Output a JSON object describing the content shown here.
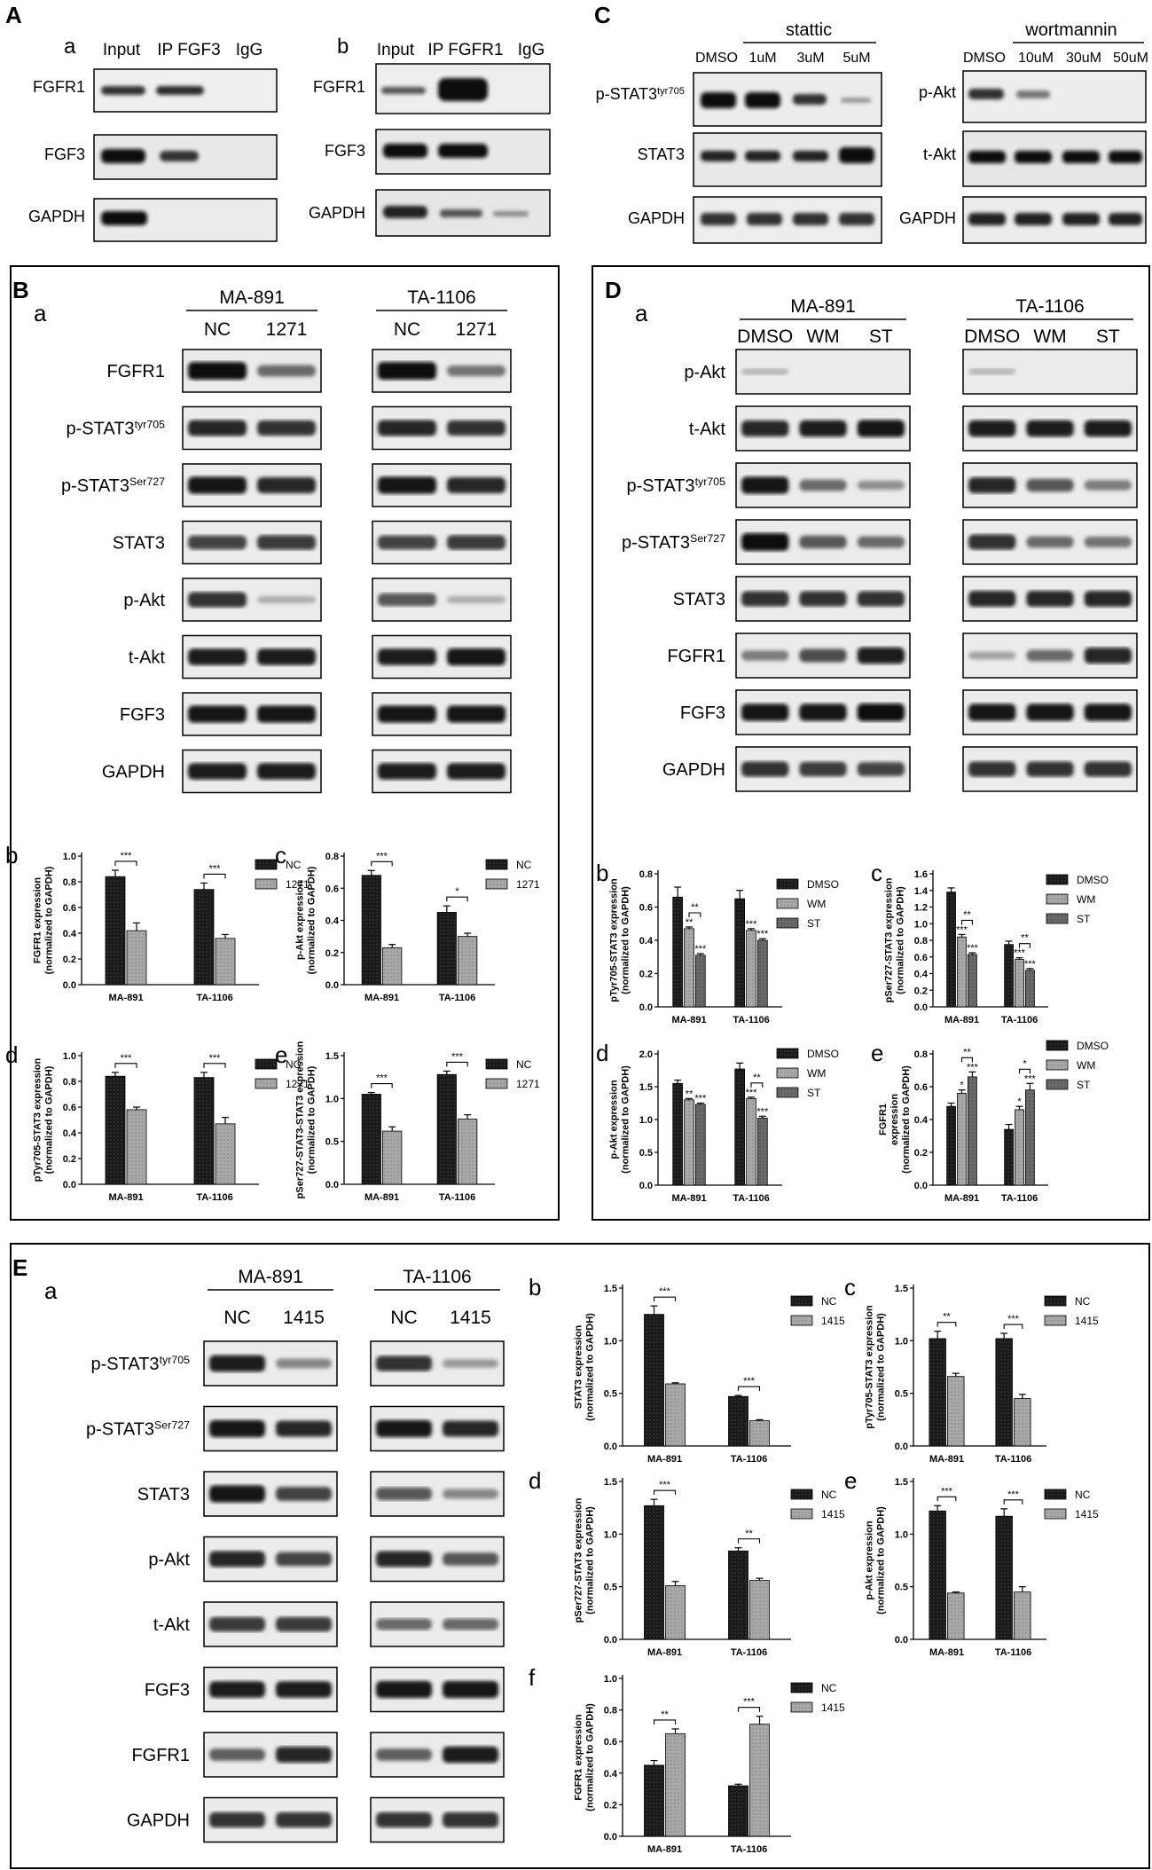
{
  "panels": {
    "A": {
      "letter": "A",
      "a": {
        "sub": "a",
        "cols": [
          "Input",
          "IP FGF3",
          "IgG"
        ],
        "rows": [
          "FGFR1",
          "FGF3",
          "GAPDH"
        ]
      },
      "b": {
        "sub": "b",
        "cols": [
          "Input",
          "IP FGFR1",
          "IgG"
        ],
        "rows": [
          "FGFR1",
          "FGF3",
          "GAPDH"
        ]
      }
    },
    "C": {
      "letter": "C",
      "left": {
        "group": "stattic",
        "cols": [
          "DMSO",
          "1uM",
          "3uM",
          "5uM"
        ],
        "rows": [
          "p-STAT3tyr705",
          "STAT3",
          "GAPDH"
        ]
      },
      "right": {
        "group": "wortmannin",
        "cols": [
          "DMSO",
          "10uM",
          "30uM",
          "50uM"
        ],
        "rows": [
          "p-Akt",
          "t-Akt",
          "GAPDH"
        ]
      }
    },
    "B": {
      "letter": "B",
      "blot": {
        "sub": "a",
        "groups": [
          {
            "name": "MA-891",
            "cols": [
              "NC",
              "1271"
            ]
          },
          {
            "name": "TA-1106",
            "cols": [
              "NC",
              "1271"
            ]
          }
        ],
        "rows": [
          "FGFR1",
          "p-STAT3tyr705",
          "p-STAT3Ser727",
          "STAT3",
          "p-Akt",
          "t-Akt",
          "FGF3",
          "GAPDH"
        ]
      }
    },
    "D": {
      "letter": "D",
      "blot": {
        "sub": "a",
        "groups": [
          {
            "name": "MA-891",
            "cols": [
              "DMSO",
              "WM",
              "ST"
            ]
          },
          {
            "name": "TA-1106",
            "cols": [
              "DMSO",
              "WM",
              "ST"
            ]
          }
        ],
        "rows": [
          "p-Akt",
          "t-Akt",
          "p-STAT3tyr705",
          "p-STAT3Ser727",
          "STAT3",
          "FGFR1",
          "FGF3",
          "GAPDH"
        ]
      }
    },
    "E": {
      "letter": "E",
      "blot": {
        "sub": "a",
        "groups": [
          {
            "name": "MA-891",
            "cols": [
              "NC",
              "1415"
            ]
          },
          {
            "name": "TA-1106",
            "cols": [
              "NC",
              "1415"
            ]
          }
        ],
        "rows": [
          "p-STAT3tyr705",
          "p-STAT3Ser727",
          "STAT3",
          "p-Akt",
          "t-Akt",
          "FGF3",
          "FGFR1",
          "GAPDH"
        ]
      }
    }
  },
  "colors": {
    "series1": "#1a1a1a",
    "series2": "#9a9a9a",
    "series3": "#6a6a6a",
    "frame": "#000000"
  },
  "chart_data": [
    {
      "id": "Bb",
      "panel": "b",
      "type": "bar",
      "categories": [
        "MA-891",
        "TA-1106"
      ],
      "ylabel": "FGFR1 expression\n(normalized to GAPDH)",
      "ylim": [
        0,
        1.0
      ],
      "yticks": [
        0.0,
        0.2,
        0.4,
        0.6,
        0.8,
        1.0
      ],
      "series": [
        {
          "name": "NC",
          "values": [
            0.84,
            0.74
          ],
          "err": [
            0.05,
            0.05
          ]
        },
        {
          "name": "1271",
          "values": [
            0.42,
            0.36
          ],
          "err": [
            0.06,
            0.03
          ]
        }
      ],
      "sig": [
        {
          "cat": 0,
          "label": "***"
        },
        {
          "cat": 1,
          "label": "***"
        }
      ],
      "legend": "right"
    },
    {
      "id": "Bc",
      "panel": "c",
      "type": "bar",
      "categories": [
        "MA-891",
        "TA-1106"
      ],
      "ylabel": "p-Akt expression\n(normalized to GAPDH)",
      "ylim": [
        0,
        0.8
      ],
      "yticks": [
        0.0,
        0.2,
        0.4,
        0.6,
        0.8
      ],
      "series": [
        {
          "name": "NC",
          "values": [
            0.68,
            0.45
          ],
          "err": [
            0.03,
            0.04
          ]
        },
        {
          "name": "1271",
          "values": [
            0.23,
            0.3
          ],
          "err": [
            0.02,
            0.02
          ]
        }
      ],
      "sig": [
        {
          "cat": 0,
          "label": "***"
        },
        {
          "cat": 1,
          "label": "*"
        }
      ],
      "legend": "right"
    },
    {
      "id": "Bd",
      "panel": "d",
      "type": "bar",
      "categories": [
        "MA-891",
        "TA-1106"
      ],
      "ylabel": "pTyr705-STAT3 expression\n(normalized to GAPDH)",
      "ylim": [
        0,
        1.0
      ],
      "yticks": [
        0.0,
        0.2,
        0.4,
        0.6,
        0.8,
        1.0
      ],
      "series": [
        {
          "name": "NC",
          "values": [
            0.84,
            0.83
          ],
          "err": [
            0.03,
            0.04
          ]
        },
        {
          "name": "1271",
          "values": [
            0.58,
            0.47
          ],
          "err": [
            0.02,
            0.05
          ]
        }
      ],
      "sig": [
        {
          "cat": 0,
          "label": "***"
        },
        {
          "cat": 1,
          "label": "***"
        }
      ],
      "legend": "right"
    },
    {
      "id": "Be",
      "panel": "e",
      "type": "bar",
      "categories": [
        "MA-891",
        "TA-1106"
      ],
      "ylabel": "pSer727-STAT3-STAT3 expression\n(normalized to GAPDH)",
      "ylim": [
        0,
        1.5
      ],
      "yticks": [
        0.0,
        0.5,
        1.0,
        1.5
      ],
      "series": [
        {
          "name": "NC",
          "values": [
            1.05,
            1.28
          ],
          "err": [
            0.02,
            0.04
          ]
        },
        {
          "name": "1271",
          "values": [
            0.62,
            0.76
          ],
          "err": [
            0.05,
            0.05
          ]
        }
      ],
      "sig": [
        {
          "cat": 0,
          "label": "***"
        },
        {
          "cat": 1,
          "label": "***"
        }
      ],
      "legend": "right"
    },
    {
      "id": "Db",
      "panel": "b",
      "type": "bar",
      "categories": [
        "MA-891",
        "TA-1106"
      ],
      "ylabel": "pTyr705-STAT3 expression\n(normalized to GAPDH)",
      "ylim": [
        0,
        0.8
      ],
      "yticks": [
        0.0,
        0.2,
        0.4,
        0.6,
        0.8
      ],
      "series": [
        {
          "name": "DMSO",
          "values": [
            0.66,
            0.65
          ],
          "err": [
            0.06,
            0.05
          ]
        },
        {
          "name": "WM",
          "values": [
            0.47,
            0.46
          ],
          "err": [
            0.01,
            0.01
          ]
        },
        {
          "name": "ST",
          "values": [
            0.31,
            0.4
          ],
          "err": [
            0.01,
            0.01
          ]
        }
      ],
      "marks": [
        [
          "",
          "**",
          "***"
        ],
        [
          "",
          "***",
          "***"
        ]
      ],
      "brackets": [
        {
          "cat": 0,
          "from": 1,
          "to": 2,
          "label": "**"
        }
      ],
      "legend": "right"
    },
    {
      "id": "Dc",
      "panel": "c",
      "type": "bar",
      "categories": [
        "MA-891",
        "TA-1106"
      ],
      "ylabel": "pSer727-STAT3 expression\n(normalized to GAPDH)",
      "ylim": [
        0,
        1.6
      ],
      "yticks": [
        0.0,
        0.2,
        0.4,
        0.6,
        0.8,
        1.0,
        1.2,
        1.4,
        1.6
      ],
      "series": [
        {
          "name": "DMSO",
          "values": [
            1.38,
            0.75
          ],
          "err": [
            0.05,
            0.04
          ]
        },
        {
          "name": "WM",
          "values": [
            0.84,
            0.57
          ],
          "err": [
            0.03,
            0.02
          ]
        },
        {
          "name": "ST",
          "values": [
            0.63,
            0.44
          ],
          "err": [
            0.02,
            0.02
          ]
        }
      ],
      "marks": [
        [
          "",
          "***",
          "***"
        ],
        [
          "",
          "***",
          "***"
        ]
      ],
      "brackets": [
        {
          "cat": 0,
          "from": 1,
          "to": 2,
          "label": "**"
        },
        {
          "cat": 1,
          "from": 1,
          "to": 2,
          "label": "**"
        }
      ],
      "legend": "right"
    },
    {
      "id": "Dd",
      "panel": "d",
      "type": "bar",
      "categories": [
        "MA-891",
        "TA-1106"
      ],
      "ylabel": "p-Akt expression\n(normalized to GAPDH)",
      "ylim": [
        0,
        2.0
      ],
      "yticks": [
        0.0,
        0.5,
        1.0,
        1.5,
        2.0
      ],
      "series": [
        {
          "name": "DMSO",
          "values": [
            1.55,
            1.77
          ],
          "err": [
            0.05,
            0.09
          ]
        },
        {
          "name": "WM",
          "values": [
            1.3,
            1.32
          ],
          "err": [
            0.02,
            0.02
          ]
        },
        {
          "name": "ST",
          "values": [
            1.23,
            1.02
          ],
          "err": [
            0.02,
            0.03
          ]
        }
      ],
      "marks": [
        [
          "",
          "**",
          "***"
        ],
        [
          "",
          "***",
          "***"
        ]
      ],
      "brackets": [
        {
          "cat": 1,
          "from": 1,
          "to": 2,
          "label": "**"
        }
      ],
      "legend": "right"
    },
    {
      "id": "De",
      "panel": "e",
      "type": "bar",
      "categories": [
        "MA-891",
        "TA-1106"
      ],
      "ylabel": "FGFR1\nexpression\n(normalized to GAPDH)",
      "ylim": [
        0,
        0.8
      ],
      "yticks": [
        0.0,
        0.2,
        0.4,
        0.6,
        0.8
      ],
      "series": [
        {
          "name": "DMSO",
          "values": [
            0.48,
            0.34
          ],
          "err": [
            0.02,
            0.03
          ]
        },
        {
          "name": "WM",
          "values": [
            0.56,
            0.46
          ],
          "err": [
            0.02,
            0.02
          ]
        },
        {
          "name": "ST",
          "values": [
            0.66,
            0.58
          ],
          "err": [
            0.03,
            0.04
          ]
        }
      ],
      "marks": [
        [
          "",
          "*",
          "***"
        ],
        [
          "",
          "*",
          "***"
        ]
      ],
      "brackets": [
        {
          "cat": 0,
          "from": 1,
          "to": 2,
          "label": "**"
        },
        {
          "cat": 1,
          "from": 1,
          "to": 2,
          "label": "*"
        }
      ],
      "legend": "right"
    },
    {
      "id": "Eb",
      "panel": "b",
      "type": "bar",
      "categories": [
        "MA-891",
        "TA-1106"
      ],
      "ylabel": "STAT3 expression\n(normalized to GAPDH)",
      "ylim": [
        0,
        1.5
      ],
      "yticks": [
        0.0,
        0.5,
        1.0,
        1.5
      ],
      "series": [
        {
          "name": "NC",
          "values": [
            1.25,
            0.47
          ],
          "err": [
            0.08,
            0.01
          ]
        },
        {
          "name": "1415",
          "values": [
            0.59,
            0.24
          ],
          "err": [
            0.01,
            0.01
          ]
        }
      ],
      "sig": [
        {
          "cat": 0,
          "label": "***"
        },
        {
          "cat": 1,
          "label": "***"
        }
      ],
      "legend": "right"
    },
    {
      "id": "Ec",
      "panel": "c",
      "type": "bar",
      "categories": [
        "MA-891",
        "TA-1106"
      ],
      "ylabel": "pTyr705-STAT3 expression\n(normalized to GAPDH)",
      "ylim": [
        0,
        1.5
      ],
      "yticks": [
        0.0,
        0.5,
        1.0,
        1.5
      ],
      "series": [
        {
          "name": "NC",
          "values": [
            1.02,
            1.02
          ],
          "err": [
            0.07,
            0.05
          ]
        },
        {
          "name": "1415",
          "values": [
            0.66,
            0.45
          ],
          "err": [
            0.03,
            0.04
          ]
        }
      ],
      "sig": [
        {
          "cat": 0,
          "label": "**"
        },
        {
          "cat": 1,
          "label": "***"
        }
      ],
      "legend": "right"
    },
    {
      "id": "Ed",
      "panel": "d",
      "type": "bar",
      "categories": [
        "MA-891",
        "TA-1106"
      ],
      "ylabel": "pSer727-STAT3 expression\n(normalized to GAPDH)",
      "ylim": [
        0,
        1.5
      ],
      "yticks": [
        0.0,
        0.5,
        1.0,
        1.5
      ],
      "series": [
        {
          "name": "NC",
          "values": [
            1.27,
            0.84
          ],
          "err": [
            0.06,
            0.03
          ]
        },
        {
          "name": "1415",
          "values": [
            0.51,
            0.56
          ],
          "err": [
            0.04,
            0.02
          ]
        }
      ],
      "sig": [
        {
          "cat": 0,
          "label": "***"
        },
        {
          "cat": 1,
          "label": "**"
        }
      ],
      "legend": "right"
    },
    {
      "id": "Ee",
      "panel": "e",
      "type": "bar",
      "categories": [
        "MA-891",
        "TA-1106"
      ],
      "ylabel": "p-Akt expression\n(normalized to GAPDH)",
      "ylim": [
        0,
        1.5
      ],
      "yticks": [
        0.0,
        0.5,
        1.0,
        1.5
      ],
      "series": [
        {
          "name": "NC",
          "values": [
            1.22,
            1.17
          ],
          "err": [
            0.05,
            0.07
          ]
        },
        {
          "name": "1415",
          "values": [
            0.44,
            0.45
          ],
          "err": [
            0.01,
            0.05
          ]
        }
      ],
      "sig": [
        {
          "cat": 0,
          "label": "***"
        },
        {
          "cat": 1,
          "label": "***"
        }
      ],
      "legend": "right"
    },
    {
      "id": "Ef",
      "panel": "f",
      "type": "bar",
      "categories": [
        "MA-891",
        "TA-1106"
      ],
      "ylabel": "FGFR1 expression\n(normalized to GAPDH)",
      "ylim": [
        0,
        1.0
      ],
      "yticks": [
        0.0,
        0.2,
        0.4,
        0.6,
        0.8,
        1.0
      ],
      "series": [
        {
          "name": "NC",
          "values": [
            0.45,
            0.32
          ],
          "err": [
            0.03,
            0.01
          ]
        },
        {
          "name": "1415",
          "values": [
            0.65,
            0.71
          ],
          "err": [
            0.03,
            0.05
          ]
        }
      ],
      "sig": [
        {
          "cat": 0,
          "label": "**"
        },
        {
          "cat": 1,
          "label": "***"
        }
      ],
      "legend": "right"
    }
  ]
}
